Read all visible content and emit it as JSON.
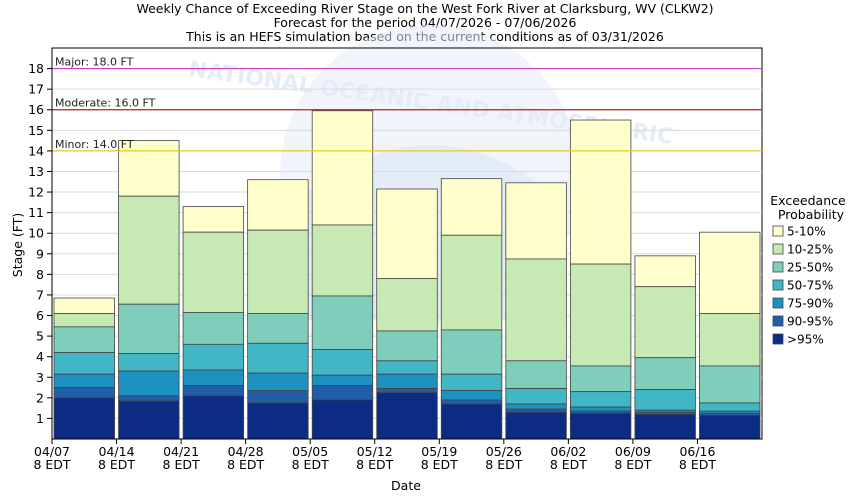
{
  "chart_data": {
    "type": "bar",
    "title_lines": [
      "Weekly Chance of Exceeding River Stage on the West Fork River at Clarksburg, WV (CLKW2)",
      "Forecast for the period 04/07/2026 - 07/06/2026",
      "This is an HEFS simulation based on the current conditions as of 03/31/2026"
    ],
    "xlabel": "Date",
    "ylabel": "Stage (FT)",
    "ylim": [
      0,
      19
    ],
    "yticks": [
      1,
      2,
      3,
      4,
      5,
      6,
      7,
      8,
      9,
      10,
      11,
      12,
      13,
      14,
      15,
      16,
      17,
      18
    ],
    "xticks": [
      {
        "date": "04/07",
        "time": "8 EDT"
      },
      {
        "date": "04/14",
        "time": "8 EDT"
      },
      {
        "date": "04/21",
        "time": "8 EDT"
      },
      {
        "date": "04/28",
        "time": "8 EDT"
      },
      {
        "date": "05/05",
        "time": "8 EDT"
      },
      {
        "date": "05/12",
        "time": "8 EDT"
      },
      {
        "date": "05/19",
        "time": "8 EDT"
      },
      {
        "date": "05/26",
        "time": "8 EDT"
      },
      {
        "date": "06/02",
        "time": "8 EDT"
      },
      {
        "date": "06/09",
        "time": "8 EDT"
      },
      {
        "date": "06/16",
        "time": "8 EDT"
      }
    ],
    "grid": "horizontal",
    "thresholds": [
      {
        "label": "Major: 18.0 FT",
        "value": 18.0,
        "color": "#cc44cc"
      },
      {
        "label": "Moderate: 16.0 FT",
        "value": 16.0,
        "color": "#bb2222"
      },
      {
        "label": "Minor: 14.0 FT",
        "value": 14.0,
        "color": "#e6cc22"
      }
    ],
    "legend": {
      "title_lines": [
        "Exceedance",
        "Probability"
      ],
      "placement": "right",
      "entries": [
        "5-10%",
        "10-25%",
        "25-50%",
        "50-75%",
        "75-90%",
        "90-95%",
        ">95%"
      ]
    },
    "band_colors": [
      "#ffffcc",
      "#c7e9b4",
      "#7fcdbb",
      "#41b6c4",
      "#1d91c0",
      "#225ea8",
      "#0c2c84"
    ],
    "weeks": [
      {
        "week": "04/07-04/14",
        "levels": [
          6.85,
          6.1,
          5.45,
          4.2,
          3.15,
          2.5,
          2.0
        ]
      },
      {
        "week": "04/14-04/21",
        "levels": [
          14.5,
          11.8,
          6.55,
          4.15,
          3.3,
          2.1,
          1.85
        ]
      },
      {
        "week": "04/21-04/28",
        "levels": [
          11.3,
          10.05,
          6.15,
          4.6,
          3.35,
          2.6,
          2.1
        ]
      },
      {
        "week": "04/28-05/05",
        "levels": [
          12.6,
          10.15,
          6.1,
          4.65,
          3.2,
          2.35,
          1.75
        ]
      },
      {
        "week": "05/05-05/12",
        "levels": [
          15.95,
          10.4,
          6.95,
          4.35,
          3.1,
          2.6,
          1.9
        ]
      },
      {
        "week": "05/12-05/19",
        "levels": [
          12.15,
          7.8,
          5.25,
          3.8,
          3.15,
          2.45,
          2.25
        ]
      },
      {
        "week": "05/19-05/26",
        "levels": [
          12.65,
          9.9,
          5.3,
          3.15,
          2.35,
          1.9,
          1.7
        ]
      },
      {
        "week": "05/26-06/02",
        "levels": [
          12.45,
          8.75,
          3.8,
          2.45,
          1.7,
          1.45,
          1.3
        ]
      },
      {
        "week": "06/02-06/09",
        "levels": [
          15.5,
          8.5,
          3.55,
          2.3,
          1.55,
          1.35,
          1.25
        ]
      },
      {
        "week": "06/09-06/16",
        "levels": [
          8.9,
          7.4,
          3.95,
          2.4,
          1.4,
          1.3,
          1.2
        ]
      },
      {
        "week": "06/16-06/23",
        "levels": [
          10.05,
          6.1,
          3.55,
          1.75,
          1.35,
          1.25,
          1.15
        ]
      }
    ]
  }
}
